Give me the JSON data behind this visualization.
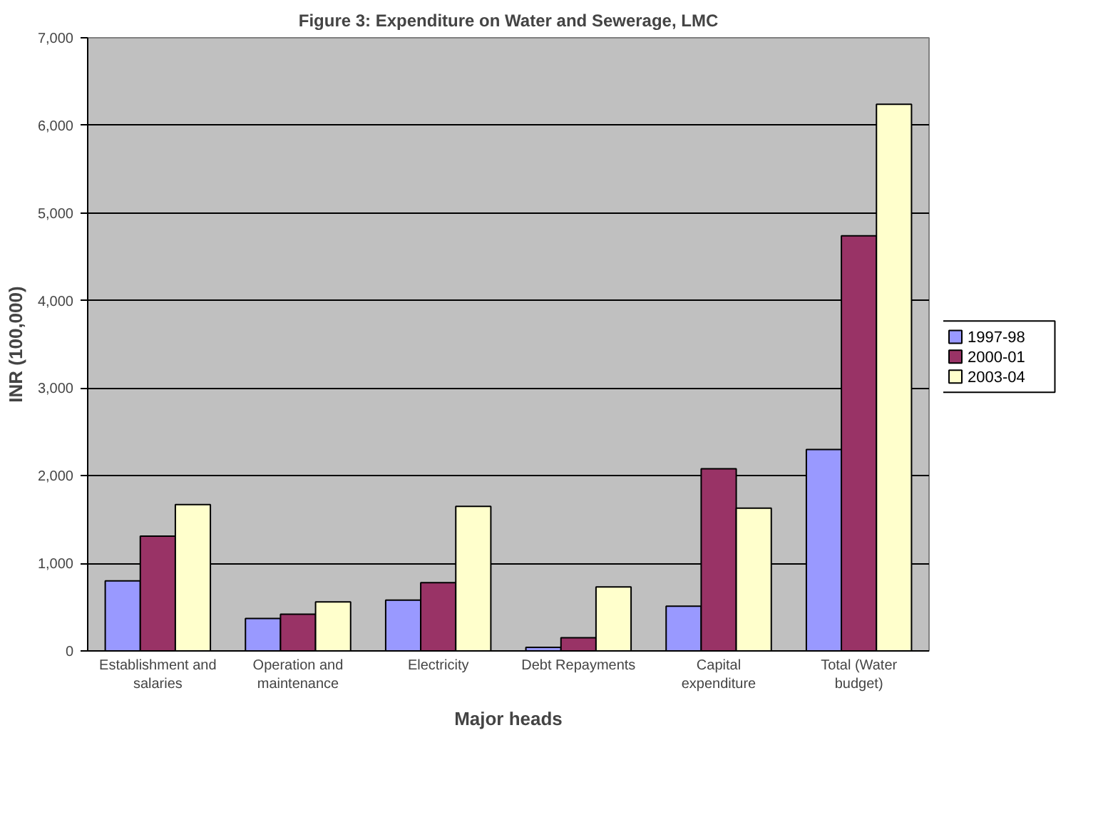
{
  "chart_data": {
    "type": "bar",
    "title": "Figure 3: Expenditure on Water and Sewerage, LMC",
    "xlabel": "Major heads",
    "ylabel": "INR (100,000)",
    "categories": [
      "Establishment and salaries",
      "Operation and maintenance",
      "Electricity",
      "Debt Repayments",
      "Capital expenditure",
      "Total (Water budget)"
    ],
    "series": [
      {
        "name": "1997-98",
        "color": "#9999ff",
        "values": [
          800,
          370,
          580,
          40,
          510,
          2300
        ]
      },
      {
        "name": "2000-01",
        "color": "#993366",
        "values": [
          1310,
          420,
          780,
          150,
          2080,
          4740
        ]
      },
      {
        "name": "2003-04",
        "color": "#ffffcc",
        "values": [
          1670,
          560,
          1650,
          730,
          1630,
          6240
        ]
      }
    ],
    "ylim": [
      0,
      7000
    ],
    "yticks": [
      {
        "value": 0,
        "label": "0"
      },
      {
        "value": 1000,
        "label": "1,000"
      },
      {
        "value": 2000,
        "label": "2,000"
      },
      {
        "value": 3000,
        "label": "3,000"
      },
      {
        "value": 4000,
        "label": "4,000"
      },
      {
        "value": 5000,
        "label": "5,000"
      },
      {
        "value": 6000,
        "label": "6,000"
      },
      {
        "value": 7000,
        "label": "7,000"
      }
    ],
    "grid": "y",
    "legend": "right"
  }
}
